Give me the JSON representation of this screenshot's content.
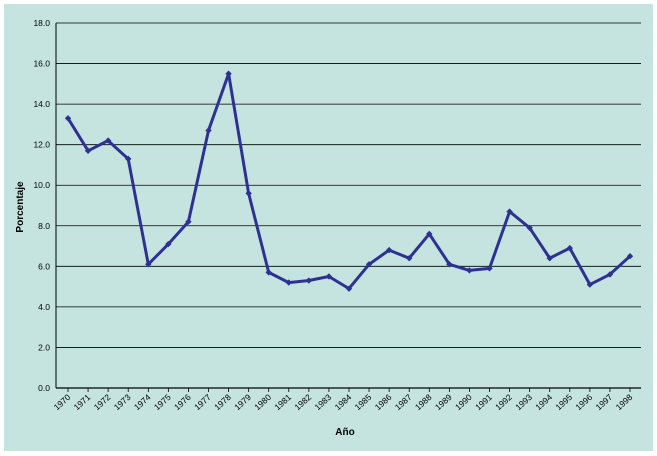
{
  "chart_data": {
    "type": "line",
    "xlabel": "Año",
    "ylabel": "Porcentaje",
    "ylim": [
      0,
      18
    ],
    "yticks": [
      "0.0",
      "2.0",
      "4.0",
      "6.0",
      "8.0",
      "10.0",
      "12.0",
      "14.0",
      "16.0",
      "18.0"
    ],
    "categories": [
      "1970",
      "1971",
      "1972",
      "1973",
      "1974",
      "1975",
      "1976",
      "1977",
      "1978",
      "1979",
      "1980",
      "1981",
      "1982",
      "1983",
      "1984",
      "1985",
      "1986",
      "1987",
      "1988",
      "1989",
      "1990",
      "1991",
      "1992",
      "1993",
      "1994",
      "1995",
      "1996",
      "1997",
      "1998"
    ],
    "values": [
      13.3,
      11.7,
      12.2,
      11.3,
      6.1,
      7.1,
      8.2,
      12.7,
      15.5,
      9.6,
      5.7,
      5.2,
      5.3,
      5.5,
      4.9,
      6.1,
      6.8,
      6.4,
      7.6,
      6.1,
      5.8,
      5.9,
      8.7,
      7.9,
      6.4,
      6.9,
      5.1,
      5.6,
      6.5
    ],
    "grid": true,
    "colors": {
      "background": "#c5e4df",
      "plot": "#c5e4df",
      "line": "#2e3192",
      "grid": "#000000",
      "text": "#000000"
    }
  }
}
